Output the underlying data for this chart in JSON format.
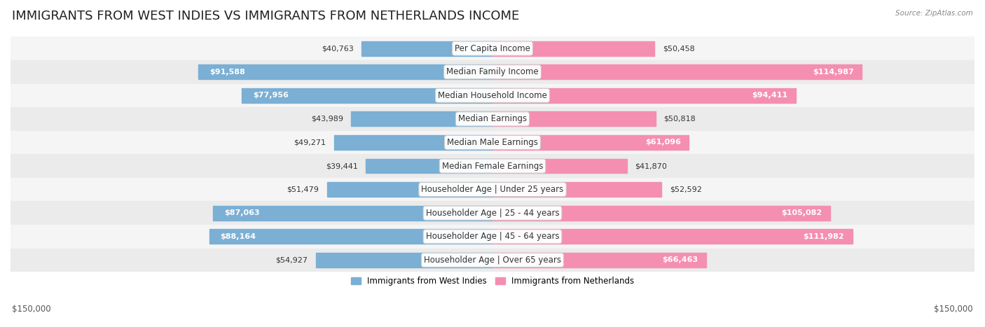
{
  "title": "IMMIGRANTS FROM WEST INDIES VS IMMIGRANTS FROM NETHERLANDS INCOME",
  "source": "Source: ZipAtlas.com",
  "categories": [
    "Per Capita Income",
    "Median Family Income",
    "Median Household Income",
    "Median Earnings",
    "Median Male Earnings",
    "Median Female Earnings",
    "Householder Age | Under 25 years",
    "Householder Age | 25 - 44 years",
    "Householder Age | 45 - 64 years",
    "Householder Age | Over 65 years"
  ],
  "west_indies": [
    40763,
    91588,
    77956,
    43989,
    49271,
    39441,
    51479,
    87063,
    88164,
    54927
  ],
  "netherlands": [
    50458,
    114987,
    94411,
    50818,
    61096,
    41870,
    52592,
    105082,
    111982,
    66463
  ],
  "west_indies_color": "#7bafd4",
  "netherlands_color": "#f48fb1",
  "row_bg_even": "#f5f5f5",
  "row_bg_odd": "#ebebeb",
  "max_value": 150000,
  "title_fontsize": 13,
  "label_fontsize": 8.5,
  "value_fontsize": 8.0,
  "legend_label_wi": "Immigrants from West Indies",
  "legend_label_nl": "Immigrants from Netherlands",
  "x_label_left": "$150,000",
  "x_label_right": "$150,000"
}
